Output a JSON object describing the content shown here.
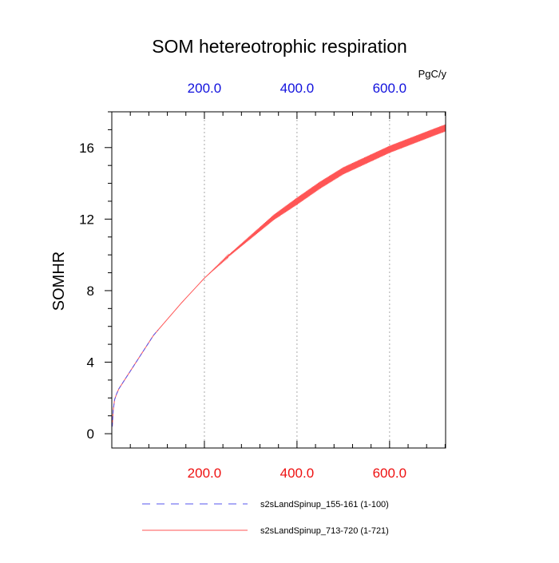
{
  "chart_data": {
    "type": "line",
    "title": "SOM hetereotrophic respiration",
    "ylabel": "SOMHR",
    "units": "PgC/y",
    "xlim": [
      0,
      721
    ],
    "ylim": [
      -0.8,
      18
    ],
    "y_ticks": [
      0,
      4,
      8,
      12,
      16
    ],
    "y_tick_labels": [
      "0",
      "4",
      "8",
      "12",
      "16"
    ],
    "x_ticks": [
      200,
      400,
      600
    ],
    "x_tick_labels_bottom": [
      "200.0",
      "400.0",
      "600.0"
    ],
    "x_tick_labels_top": [
      "200.0",
      "400.0",
      "600.0"
    ],
    "grid": "vertical dotted",
    "legend_position": "bottom",
    "series": [
      {
        "name": "s2sLandSpinup_155-161 (1-100)",
        "color": "#5555ee",
        "dash": "dashed",
        "x": [
          1,
          3,
          6,
          10,
          15,
          20,
          30,
          40,
          50,
          60,
          70,
          80,
          90,
          100
        ],
        "y": [
          0.4,
          1.3,
          1.9,
          2.2,
          2.5,
          2.7,
          3.1,
          3.5,
          3.9,
          4.3,
          4.7,
          5.1,
          5.5,
          5.8
        ]
      },
      {
        "name": "s2sLandSpinup_713-720 (1-721)",
        "color": "#ff5555",
        "dash": "solid",
        "oscillation_amplitude": 0.2,
        "oscillation_start": 250,
        "x": [
          1,
          3,
          6,
          10,
          15,
          20,
          30,
          40,
          50,
          60,
          70,
          80,
          90,
          100,
          120,
          150,
          175,
          200,
          250,
          300,
          350,
          400,
          450,
          500,
          550,
          600,
          650,
          700,
          721
        ],
        "y": [
          0.4,
          1.3,
          1.9,
          2.2,
          2.5,
          2.7,
          3.1,
          3.5,
          3.9,
          4.3,
          4.7,
          5.1,
          5.5,
          5.8,
          6.4,
          7.3,
          8.0,
          8.7,
          9.9,
          11.0,
          12.1,
          13.0,
          13.9,
          14.7,
          15.3,
          15.9,
          16.4,
          16.9,
          17.1
        ]
      }
    ]
  }
}
